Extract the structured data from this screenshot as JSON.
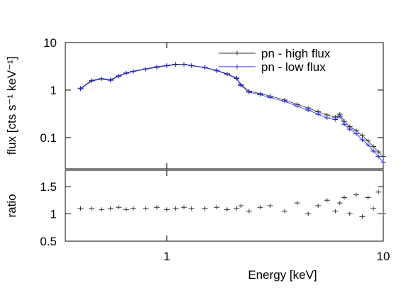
{
  "chart_data": [
    {
      "type": "line",
      "ylabel": "flux [cts s⁻¹ keV⁻¹]",
      "xscale": "log",
      "yscale": "log",
      "xlim": [
        0.34,
        10
      ],
      "ylim": [
        0.022,
        10
      ],
      "xticks": [
        1,
        10
      ],
      "yticks": [
        10,
        1,
        0.1
      ],
      "legend": "upper right",
      "series": [
        {
          "name": "pn - high flux",
          "color": "#333333",
          "x": [
            0.4,
            0.45,
            0.5,
            0.55,
            0.6,
            0.65,
            0.7,
            0.8,
            0.9,
            1.0,
            1.1,
            1.2,
            1.3,
            1.5,
            1.7,
            1.9,
            2.1,
            2.2,
            2.4,
            2.7,
            3.0,
            3.5,
            4.0,
            4.5,
            5.0,
            5.5,
            6.0,
            6.3,
            6.6,
            7.0,
            7.5,
            8.0,
            8.5,
            9.0,
            9.5,
            10.0
          ],
          "values": [
            1.1,
            1.6,
            1.75,
            1.65,
            2.0,
            2.3,
            2.5,
            2.8,
            3.1,
            3.3,
            3.5,
            3.5,
            3.3,
            3.0,
            2.6,
            2.2,
            1.8,
            1.3,
            0.95,
            0.85,
            0.75,
            0.62,
            0.5,
            0.42,
            0.35,
            0.3,
            0.27,
            0.31,
            0.22,
            0.17,
            0.14,
            0.11,
            0.085,
            0.065,
            0.05,
            0.04
          ]
        },
        {
          "name": "pn - low flux",
          "color": "#2222ee",
          "x": [
            0.4,
            0.45,
            0.5,
            0.55,
            0.6,
            0.65,
            0.7,
            0.8,
            0.9,
            1.0,
            1.1,
            1.2,
            1.3,
            1.5,
            1.7,
            1.9,
            2.1,
            2.2,
            2.4,
            2.7,
            3.0,
            3.5,
            4.0,
            4.5,
            5.0,
            5.5,
            6.0,
            6.3,
            6.6,
            7.0,
            7.5,
            8.0,
            8.5,
            9.0,
            9.5,
            10.0
          ],
          "values": [
            1.05,
            1.55,
            1.7,
            1.6,
            1.95,
            2.25,
            2.45,
            2.75,
            3.0,
            3.25,
            3.4,
            3.45,
            3.25,
            2.95,
            2.55,
            2.15,
            1.75,
            1.25,
            0.9,
            0.8,
            0.7,
            0.58,
            0.46,
            0.38,
            0.31,
            0.26,
            0.24,
            0.28,
            0.19,
            0.15,
            0.12,
            0.09,
            0.07,
            0.052,
            0.04,
            0.03
          ]
        }
      ]
    },
    {
      "type": "scatter",
      "ylabel": "ratio",
      "xlabel": "Energy [keV]",
      "xscale": "log",
      "xlim": [
        0.34,
        10
      ],
      "ylim": [
        0.5,
        1.8
      ],
      "xticks": [
        1,
        10
      ],
      "yticks": [
        0.5,
        1,
        1.5
      ],
      "series": [
        {
          "color": "#333333",
          "x": [
            0.4,
            0.45,
            0.5,
            0.55,
            0.6,
            0.65,
            0.7,
            0.8,
            0.9,
            1.0,
            1.1,
            1.2,
            1.3,
            1.5,
            1.7,
            1.9,
            2.1,
            2.2,
            2.4,
            2.7,
            3.0,
            3.5,
            4.0,
            4.5,
            5.0,
            5.5,
            6.0,
            6.3,
            6.6,
            7.0,
            7.5,
            8.0,
            8.5,
            9.0,
            9.5,
            10.0
          ],
          "values": [
            1.1,
            1.1,
            1.08,
            1.1,
            1.12,
            1.08,
            1.1,
            1.1,
            1.12,
            1.08,
            1.1,
            1.12,
            1.1,
            1.1,
            1.12,
            1.08,
            1.1,
            1.15,
            1.05,
            1.12,
            1.15,
            1.05,
            1.2,
            1.0,
            1.15,
            1.25,
            1.05,
            1.2,
            1.3,
            1.0,
            1.35,
            0.95,
            1.3,
            1.1,
            1.4,
            1.0
          ]
        }
      ]
    }
  ]
}
